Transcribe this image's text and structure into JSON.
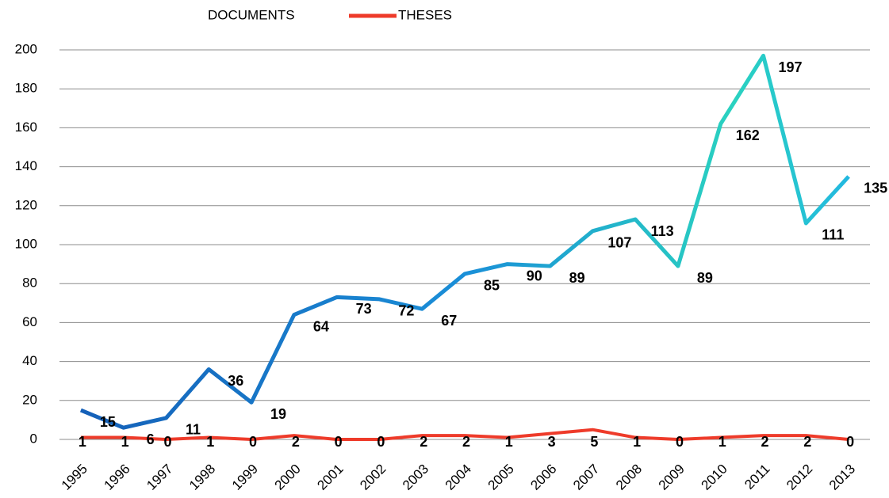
{
  "chart_data": {
    "type": "line",
    "categories": [
      "1995",
      "1996",
      "1997",
      "1998",
      "1999",
      "2000",
      "2001",
      "2002",
      "2003",
      "2004",
      "2005",
      "2006",
      "2007",
      "2008",
      "2009",
      "2010",
      "2011",
      "2012",
      "2013"
    ],
    "series": [
      {
        "name": "DOCUMENTS",
        "color": "#1a8fd8",
        "values": [
          15,
          6,
          11,
          36,
          19,
          64,
          73,
          72,
          67,
          85,
          90,
          89,
          107,
          113,
          89,
          162,
          197,
          111,
          135
        ]
      },
      {
        "name": "THESES",
        "color": "#ee3b2a",
        "values": [
          1,
          1,
          0,
          1,
          0,
          2,
          0,
          0,
          2,
          2,
          1,
          3,
          5,
          1,
          0,
          1,
          2,
          2,
          0
        ]
      }
    ],
    "ylim": [
      0,
      200
    ],
    "yticks": [
      0,
      20,
      40,
      60,
      80,
      100,
      120,
      140,
      160,
      180,
      200
    ],
    "grid": true,
    "legend": "top"
  }
}
